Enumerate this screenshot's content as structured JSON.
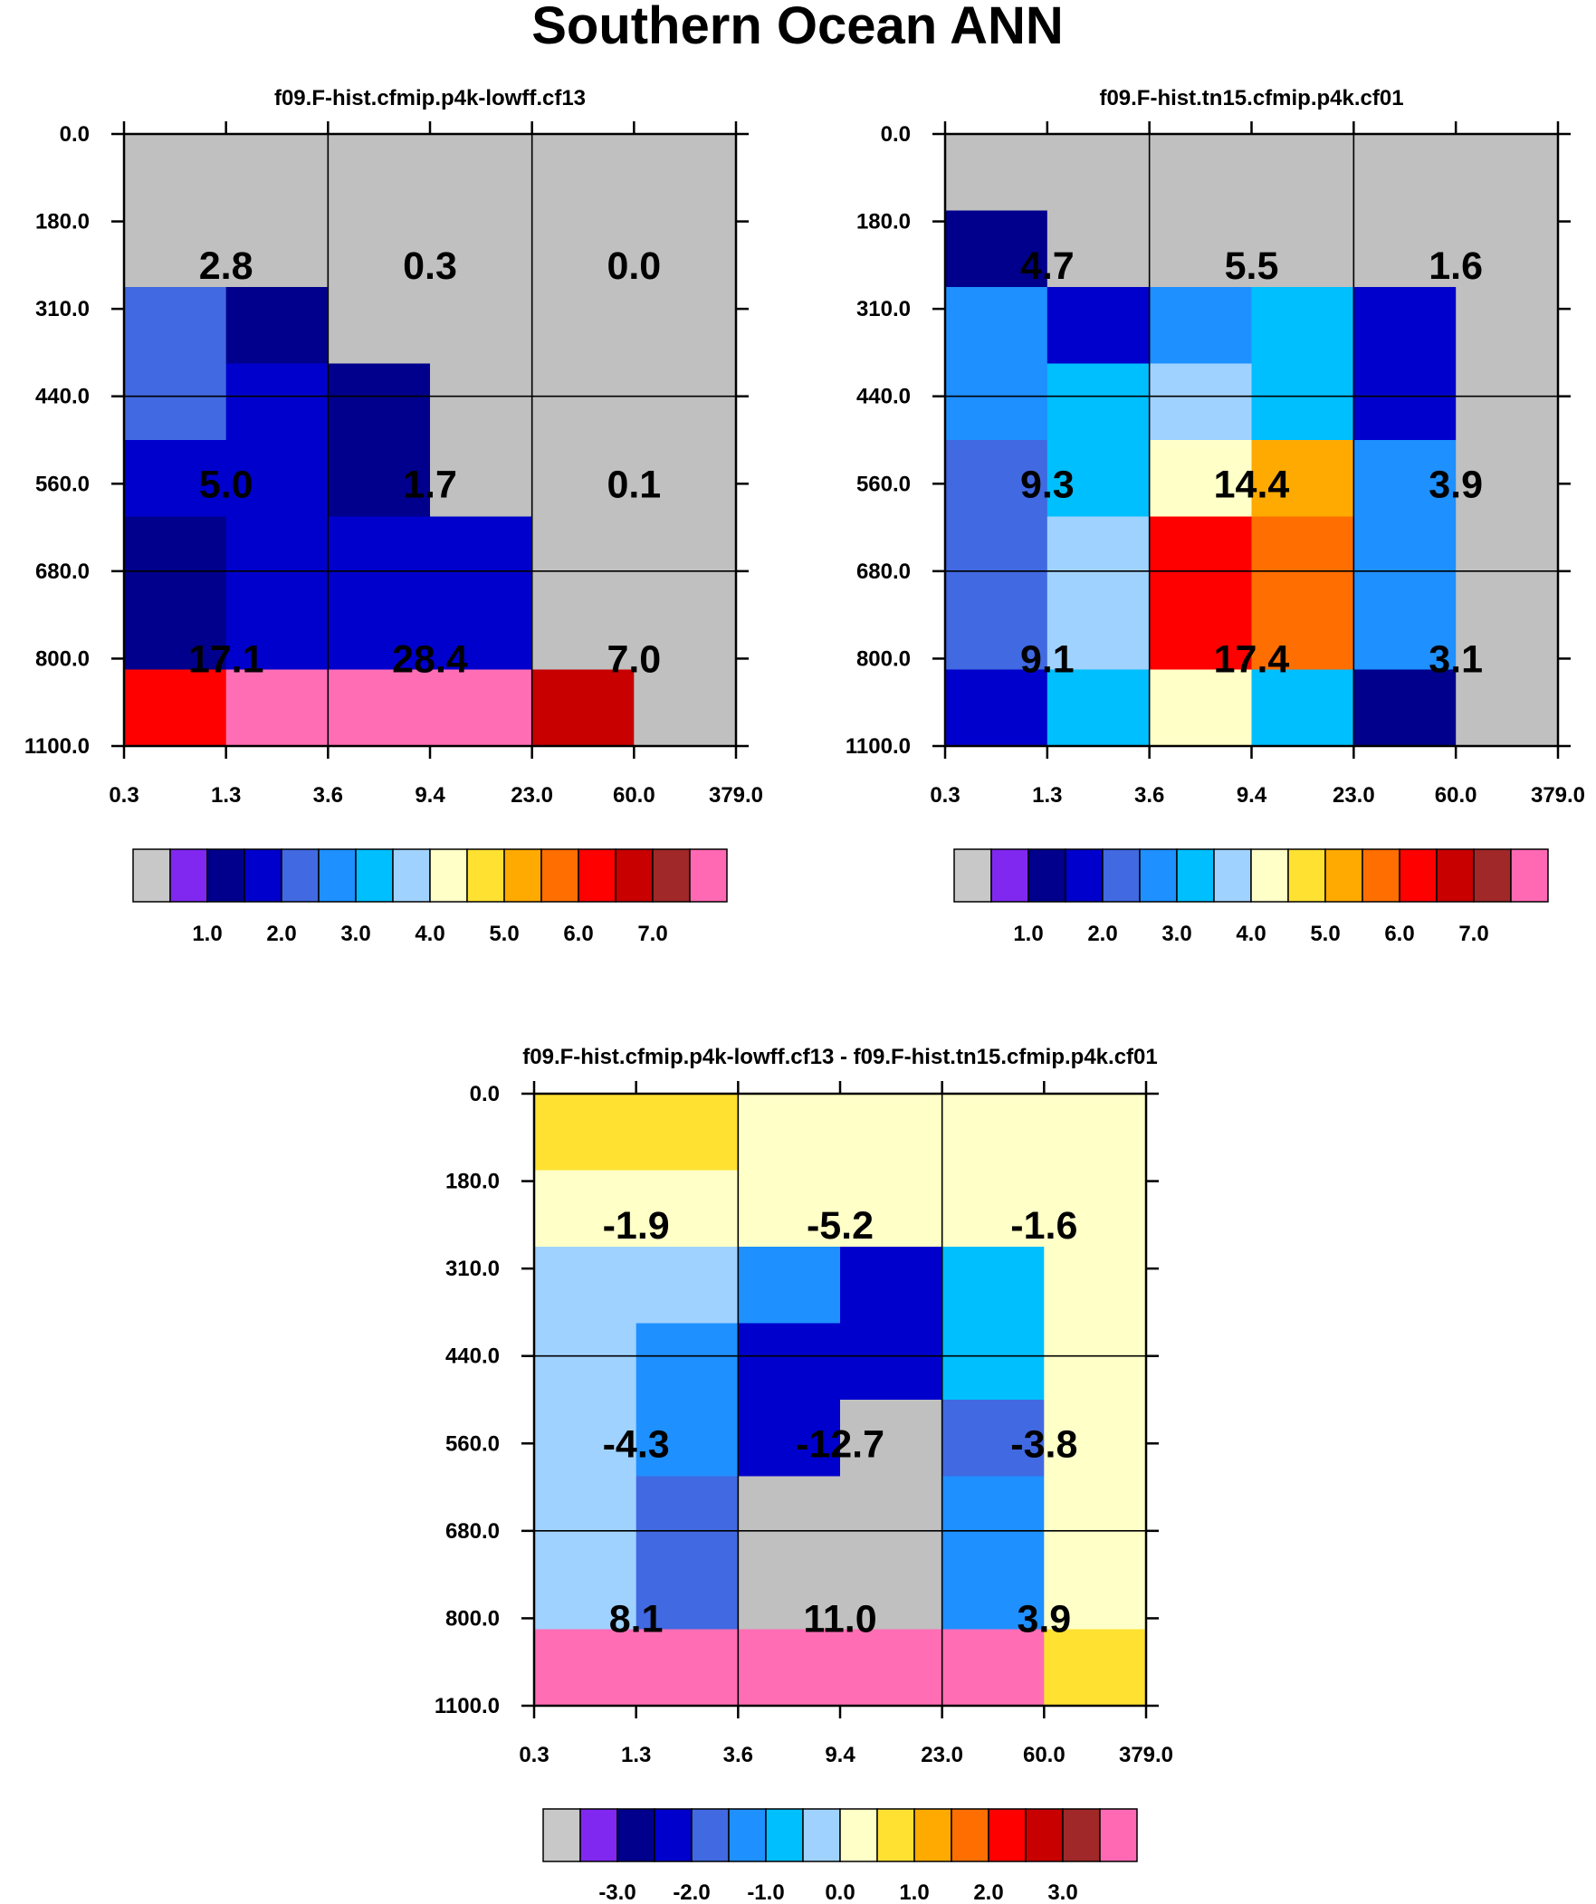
{
  "title": "Southern Ocean ANN",
  "chart_data": [
    {
      "type": "heatmap",
      "title": "f09.F-hist.cfmip.p4k-lowff.cf13",
      "x_ticks": [
        "0.3",
        "1.3",
        "3.6",
        "9.4",
        "23.0",
        "60.0",
        "379.0"
      ],
      "y_ticks": [
        "0.0",
        "180.0",
        "310.0",
        "440.0",
        "560.0",
        "680.0",
        "800.0",
        "1100.0"
      ],
      "cells": [
        [
          0,
          0,
          0,
          0,
          0,
          0
        ],
        [
          0,
          0,
          0,
          0,
          0,
          0
        ],
        [
          4,
          2,
          0,
          0,
          0,
          0
        ],
        [
          4,
          3,
          2,
          0,
          0,
          0
        ],
        [
          3,
          3,
          2,
          0,
          0,
          0
        ],
        [
          2,
          3,
          3,
          3,
          0,
          0
        ],
        [
          2,
          3,
          3,
          3,
          0,
          0
        ],
        [
          12,
          16,
          16,
          16,
          13,
          0
        ]
      ],
      "group_values": [
        [
          "2.8",
          "0.3",
          "0.0"
        ],
        [
          "5.0",
          "1.7",
          "0.1"
        ],
        [
          "17.1",
          "28.4",
          "7.0"
        ]
      ],
      "colorbar_labels": [
        "1.0",
        "2.0",
        "3.0",
        "4.0",
        "5.0",
        "6.0",
        "7.0"
      ]
    },
    {
      "type": "heatmap",
      "title": "f09.F-hist.tn15.cfmip.p4k.cf01",
      "x_ticks": [
        "0.3",
        "1.3",
        "3.6",
        "9.4",
        "23.0",
        "60.0",
        "379.0"
      ],
      "y_ticks": [
        "0.0",
        "180.0",
        "310.0",
        "440.0",
        "560.0",
        "680.0",
        "800.0",
        "1100.0"
      ],
      "cells": [
        [
          0,
          0,
          0,
          0,
          0,
          0
        ],
        [
          2,
          0,
          0,
          0,
          0,
          0
        ],
        [
          5,
          3,
          5,
          6,
          3,
          0
        ],
        [
          5,
          6,
          7,
          6,
          3,
          0
        ],
        [
          4,
          6,
          8,
          10,
          5,
          0
        ],
        [
          4,
          7,
          12,
          11,
          5,
          0
        ],
        [
          4,
          7,
          12,
          11,
          5,
          0
        ],
        [
          3,
          6,
          8,
          6,
          2,
          0
        ]
      ],
      "group_values": [
        [
          "4.7",
          "5.5",
          "1.6"
        ],
        [
          "9.3",
          "14.4",
          "3.9"
        ],
        [
          "9.1",
          "17.4",
          "3.1"
        ]
      ],
      "colorbar_labels": [
        "1.0",
        "2.0",
        "3.0",
        "4.0",
        "5.0",
        "6.0",
        "7.0"
      ]
    },
    {
      "type": "heatmap",
      "title": "f09.F-hist.cfmip.p4k-lowff.cf13 - f09.F-hist.tn15.cfmip.p4k.cf01",
      "x_ticks": [
        "0.3",
        "1.3",
        "3.6",
        "9.4",
        "23.0",
        "60.0",
        "379.0"
      ],
      "y_ticks": [
        "0.0",
        "180.0",
        "310.0",
        "440.0",
        "560.0",
        "680.0",
        "800.0",
        "1100.0"
      ],
      "cells": [
        [
          9,
          9,
          8,
          8,
          8,
          8
        ],
        [
          8,
          8,
          8,
          8,
          8,
          8
        ],
        [
          7,
          7,
          5,
          3,
          6,
          8
        ],
        [
          7,
          5,
          3,
          3,
          6,
          8
        ],
        [
          7,
          5,
          3,
          0,
          4,
          8
        ],
        [
          7,
          4,
          0,
          0,
          5,
          8
        ],
        [
          7,
          4,
          0,
          0,
          5,
          8
        ],
        [
          16,
          16,
          16,
          16,
          16,
          9
        ]
      ],
      "group_values": [
        [
          "-1.9",
          "-5.2",
          "-1.6"
        ],
        [
          "-4.3",
          "-12.7",
          "-3.8"
        ],
        [
          "8.1",
          "11.0",
          "3.9"
        ]
      ],
      "colorbar_labels": [
        "-3.0",
        "-2.0",
        "-1.0",
        "0.0",
        "1.0",
        "2.0",
        "3.0"
      ]
    }
  ],
  "colors": {
    "palette": [
      "#c0c0c0",
      "#8028f0",
      "#00008c",
      "#0000cd",
      "#4169e1",
      "#1e90ff",
      "#00bfff",
      "#a0d2ff",
      "#ffffc8",
      "#ffe132",
      "#ffaa00",
      "#ff6e00",
      "#ff0000",
      "#c80000",
      "#a02828",
      "#ff69b4",
      "#ff6eb4"
    ],
    "colorbar": [
      "#c8c8c8",
      "#8028f0",
      "#00008c",
      "#0000cd",
      "#4169e1",
      "#1e90ff",
      "#00bfff",
      "#a0d2ff",
      "#ffffc8",
      "#ffe132",
      "#ffaa00",
      "#ff6e00",
      "#ff0000",
      "#c80000",
      "#a02828",
      "#ff69b4"
    ]
  }
}
